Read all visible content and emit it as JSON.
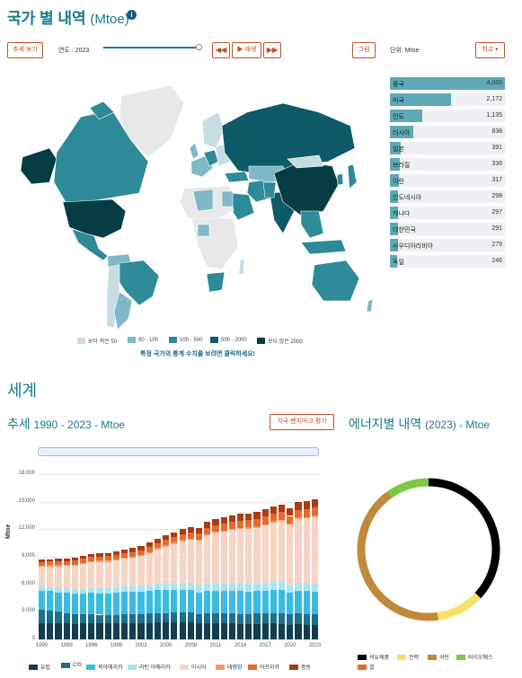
{
  "header": {
    "title": "국가 별 내역",
    "unit": "(Mtoe)",
    "info_icon": "info-icon"
  },
  "controls": {
    "trend_button": "추세 보기",
    "year_label": "연도 : 2023",
    "rewind_icon": "rewind-icon",
    "play_label": "▶ 재생",
    "forward_icon": "fast-forward-icon",
    "graph_button": "그림",
    "unit_label": "단위: Mtoe",
    "max_dropdown": "최고 ▾"
  },
  "ranking": {
    "max": 4060,
    "rows": [
      {
        "name": "중국",
        "value": "4,060",
        "num": 4060
      },
      {
        "name": "미국",
        "value": "2,172",
        "num": 2172
      },
      {
        "name": "인도",
        "value": "1,135",
        "num": 1135
      },
      {
        "name": "러시아",
        "value": "838",
        "num": 838
      },
      {
        "name": "일본",
        "value": "391",
        "num": 391
      },
      {
        "name": "브라질",
        "value": "336",
        "num": 336
      },
      {
        "name": "이란",
        "value": "317",
        "num": 317
      },
      {
        "name": "인도네시아",
        "value": "298",
        "num": 298
      },
      {
        "name": "캐나다",
        "value": "297",
        "num": 297
      },
      {
        "name": "대한민국",
        "value": "291",
        "num": 291
      },
      {
        "name": "사우디아라비아",
        "value": "279",
        "num": 279
      },
      {
        "name": "독일",
        "value": "246",
        "num": 246
      }
    ]
  },
  "map_legend": [
    {
      "label": "보다 적은 50",
      "color": "#c8dde2"
    },
    {
      "label": "50 - 100",
      "color": "#7fb8c6"
    },
    {
      "label": "100 - 500",
      "color": "#2f8a98"
    },
    {
      "label": "500 - 2000",
      "color": "#0e5a68"
    },
    {
      "label": "보다 많은 2000",
      "color": "#063c44"
    }
  ],
  "map_hint": "특정 국가의 통계 수치를 보려면 클릭하세요!",
  "world": {
    "section_title": "세계",
    "trend_title": "추세",
    "trend_meta": "1990 - 2023 - Mtoe",
    "benchmark_button": "각국 벤치마크 평가",
    "energy_title": "에너지별 내역",
    "energy_meta": "(2023) - Mtoe"
  },
  "chart_data": [
    {
      "type": "bar",
      "stacked": true,
      "ylabel": "Mtoe",
      "ylim": [
        0,
        18000
      ],
      "yticks": [
        "0",
        "3,000",
        "6,000",
        "9,000",
        "12,000",
        "15,000",
        "18,000"
      ],
      "xticks": [
        "1990",
        "1993",
        "1996",
        "1999",
        "2002",
        "2005",
        "2008",
        "2011",
        "2014",
        "2017",
        "2020",
        "2023"
      ],
      "x": [
        1990,
        1991,
        1992,
        1993,
        1994,
        1995,
        1996,
        1997,
        1998,
        1999,
        2000,
        2001,
        2002,
        2003,
        2004,
        2005,
        2006,
        2007,
        2008,
        2009,
        2010,
        2011,
        2012,
        2013,
        2014,
        2015,
        2016,
        2017,
        2018,
        2019,
        2020,
        2021,
        2022,
        2023
      ],
      "series": [
        {
          "name": "유럽",
          "color": "#123e4e",
          "values": [
            1800,
            1780,
            1740,
            1720,
            1700,
            1720,
            1760,
            1740,
            1740,
            1740,
            1760,
            1780,
            1780,
            1800,
            1820,
            1820,
            1830,
            1820,
            1810,
            1720,
            1780,
            1740,
            1740,
            1730,
            1680,
            1690,
            1700,
            1720,
            1720,
            1690,
            1590,
            1680,
            1600,
            1560
          ]
        },
        {
          "name": "CIS",
          "color": "#1e6f8a",
          "values": [
            1400,
            1350,
            1250,
            1150,
            1050,
            1000,
            980,
            950,
            930,
            940,
            960,
            980,
            990,
            1010,
            1030,
            1040,
            1060,
            1070,
            1080,
            1020,
            1070,
            1100,
            1100,
            1090,
            1090,
            1080,
            1090,
            1110,
            1140,
            1150,
            1120,
            1180,
            1170,
            1180
          ]
        },
        {
          "name": "북아메리카",
          "color": "#38bde0",
          "values": [
            2100,
            2110,
            2140,
            2180,
            2220,
            2260,
            2320,
            2340,
            2350,
            2390,
            2430,
            2400,
            2430,
            2450,
            2490,
            2500,
            2480,
            2520,
            2480,
            2380,
            2450,
            2440,
            2400,
            2450,
            2480,
            2460,
            2450,
            2460,
            2530,
            2510,
            2350,
            2450,
            2470,
            2450
          ]
        },
        {
          "name": "라틴 아메리카",
          "color": "#a9e4f5",
          "values": [
            470,
            480,
            490,
            500,
            520,
            540,
            560,
            580,
            590,
            600,
            610,
            620,
            630,
            650,
            680,
            700,
            720,
            740,
            760,
            760,
            800,
            820,
            840,
            860,
            870,
            870,
            870,
            870,
            870,
            870,
            830,
            870,
            880,
            890
          ]
        },
        {
          "name": "아시아",
          "color": "#f8d4c4",
          "values": [
            2150,
            2250,
            2350,
            2450,
            2550,
            2700,
            2800,
            2850,
            2850,
            2900,
            3000,
            3100,
            3250,
            3500,
            3800,
            4050,
            4300,
            4550,
            4700,
            4850,
            5200,
            5500,
            5650,
            5800,
            5900,
            5950,
            6050,
            6250,
            6500,
            6650,
            6600,
            6950,
            7050,
            7250
          ]
        },
        {
          "name": "태평양",
          "color": "#f59a6a",
          "values": [
            100,
            102,
            104,
            106,
            108,
            110,
            112,
            115,
            116,
            118,
            120,
            122,
            124,
            126,
            128,
            130,
            132,
            134,
            136,
            134,
            138,
            140,
            140,
            142,
            142,
            142,
            144,
            146,
            146,
            146,
            140,
            142,
            142,
            142
          ]
        },
        {
          "name": "아프리카",
          "color": "#e86a2a",
          "values": [
            400,
            410,
            420,
            430,
            440,
            450,
            460,
            470,
            480,
            490,
            500,
            510,
            520,
            540,
            560,
            580,
            600,
            620,
            640,
            660,
            680,
            690,
            710,
            730,
            750,
            770,
            780,
            800,
            820,
            840,
            820,
            850,
            860,
            870
          ]
        },
        {
          "name": "중동",
          "color": "#a83c16",
          "values": [
            240,
            250,
            270,
            290,
            310,
            330,
            340,
            360,
            370,
            380,
            400,
            420,
            440,
            460,
            490,
            520,
            550,
            570,
            600,
            620,
            650,
            670,
            700,
            720,
            740,
            760,
            780,
            800,
            800,
            810,
            790,
            830,
            850,
            870
          ]
        }
      ]
    },
    {
      "type": "pie",
      "donut": true,
      "series": [
        {
          "name": "석유제품",
          "color": "#000000",
          "value": 34
        },
        {
          "name": "전력",
          "color": "#f7e06a",
          "value": 10
        },
        {
          "name": "석탄",
          "color": "#c08a3c",
          "value": 39
        },
        {
          "name": "바이오매스",
          "color": "#7ac943",
          "value": 9
        },
        {
          "name": "열",
          "color": "#e86a2a",
          "value": 0
        }
      ]
    }
  ]
}
